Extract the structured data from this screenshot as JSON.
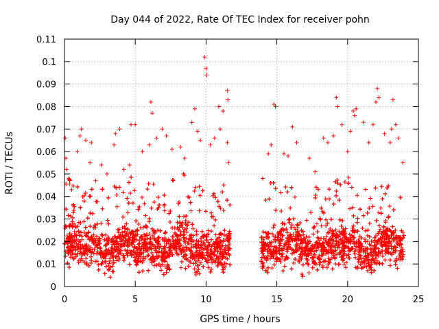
{
  "chart_data": {
    "type": "scatter",
    "title": "Day 044 of 2022, Rate Of TEC Index for receiver pohn",
    "xlabel": "GPS time / hours",
    "ylabel": "ROTI / TECUs",
    "xlim": [
      0,
      25
    ],
    "ylim": [
      0,
      0.11
    ],
    "xticks": [
      0,
      5,
      10,
      15,
      20,
      25
    ],
    "xtick_labels": [
      "0",
      "5",
      "10",
      "15",
      "20",
      "25"
    ],
    "yticks": [
      0,
      0.01,
      0.02,
      0.03,
      0.04,
      0.05,
      0.06,
      0.07,
      0.08,
      0.09,
      0.1,
      0.11
    ],
    "ytick_labels": [
      "0",
      "0.01",
      "0.02",
      "0.03",
      "0.04",
      "0.05",
      "0.06",
      "0.07",
      "0.08",
      "0.09",
      "0.1",
      "0.11"
    ],
    "grid": true,
    "marker": "+",
    "marker_color": "#ff0000",
    "data_gap_hours": [
      11.7,
      13.9
    ],
    "series": [
      {
        "name": "ROTI",
        "points": [
          [
            0.05,
            0.066
          ],
          [
            0.1,
            0.057
          ],
          [
            0.15,
            0.052
          ],
          [
            0.3,
            0.048
          ],
          [
            0.5,
            0.043
          ],
          [
            0.9,
            0.06
          ],
          [
            1.1,
            0.067
          ],
          [
            1.2,
            0.07
          ],
          [
            1.5,
            0.065
          ],
          [
            1.8,
            0.055
          ],
          [
            1.9,
            0.064
          ],
          [
            2.2,
            0.047
          ],
          [
            2.6,
            0.054
          ],
          [
            3.0,
            0.05
          ],
          [
            3.5,
            0.063
          ],
          [
            3.6,
            0.068
          ],
          [
            3.9,
            0.07
          ],
          [
            4.2,
            0.052
          ],
          [
            4.6,
            0.054
          ],
          [
            4.7,
            0.072
          ],
          [
            5.0,
            0.072
          ],
          [
            5.5,
            0.06
          ],
          [
            6.0,
            0.063
          ],
          [
            6.1,
            0.082
          ],
          [
            6.2,
            0.077
          ],
          [
            6.5,
            0.066
          ],
          [
            6.9,
            0.07
          ],
          [
            7.2,
            0.067
          ],
          [
            7.6,
            0.061
          ],
          [
            8.2,
            0.062
          ],
          [
            8.5,
            0.057
          ],
          [
            9.0,
            0.073
          ],
          [
            9.2,
            0.079
          ],
          [
            9.4,
            0.069
          ],
          [
            9.6,
            0.065
          ],
          [
            9.9,
            0.102
          ],
          [
            10.0,
            0.097
          ],
          [
            10.05,
            0.094
          ],
          [
            10.3,
            0.063
          ],
          [
            10.6,
            0.066
          ],
          [
            10.9,
            0.08
          ],
          [
            11.0,
            0.07
          ],
          [
            11.2,
            0.078
          ],
          [
            11.5,
            0.087
          ],
          [
            11.55,
            0.083
          ],
          [
            11.5,
            0.064
          ],
          [
            11.6,
            0.055
          ],
          [
            14.0,
            0.048
          ],
          [
            14.4,
            0.059
          ],
          [
            14.6,
            0.063
          ],
          [
            14.8,
            0.081
          ],
          [
            14.9,
            0.08
          ],
          [
            15.5,
            0.059
          ],
          [
            15.8,
            0.058
          ],
          [
            16.1,
            0.071
          ],
          [
            16.4,
            0.064
          ],
          [
            17.3,
            0.057
          ],
          [
            17.7,
            0.051
          ],
          [
            18.3,
            0.066
          ],
          [
            18.6,
            0.064
          ],
          [
            19.0,
            0.067
          ],
          [
            19.2,
            0.084
          ],
          [
            19.3,
            0.08
          ],
          [
            19.6,
            0.072
          ],
          [
            20.0,
            0.06
          ],
          [
            20.2,
            0.069
          ],
          [
            20.4,
            0.078
          ],
          [
            20.5,
            0.076
          ],
          [
            20.6,
            0.079
          ],
          [
            21.1,
            0.073
          ],
          [
            21.5,
            0.064
          ],
          [
            21.8,
            0.072
          ],
          [
            22.0,
            0.082
          ],
          [
            22.1,
            0.088
          ],
          [
            22.2,
            0.084
          ],
          [
            22.6,
            0.068
          ],
          [
            23.0,
            0.064
          ],
          [
            23.1,
            0.07
          ],
          [
            23.2,
            0.083
          ],
          [
            23.4,
            0.072
          ],
          [
            23.6,
            0.066
          ],
          [
            23.9,
            0.055
          ]
        ]
      }
    ]
  }
}
